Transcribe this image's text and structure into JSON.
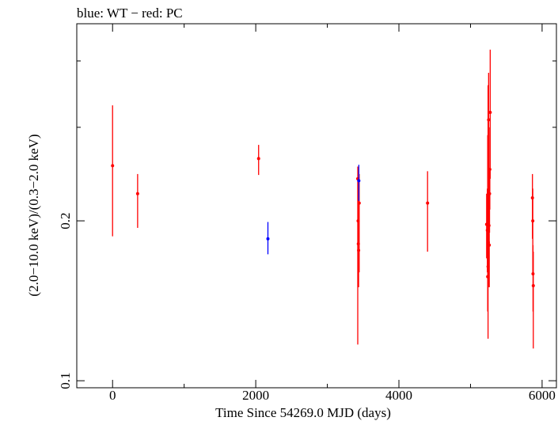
{
  "chart_data": {
    "type": "scatter",
    "title": "blue: WT − red: PC",
    "xlabel": "Time Since 54269.0 MJD (days)",
    "ylabel": "(2.0−10.0 keV)/(0.3−2.0 keV)",
    "xlim": [
      -500,
      6200
    ],
    "ylim": [
      0.097,
      0.47
    ],
    "yscale": "log",
    "x_ticks": [
      0,
      2000,
      4000,
      6000
    ],
    "x_tick_labels": [
      "0",
      "2000",
      "4000",
      "6000"
    ],
    "y_ticks": [
      0.1,
      0.2
    ],
    "y_tick_labels": [
      "0.1",
      "0.2"
    ],
    "grid": false,
    "series": [
      {
        "name": "WT",
        "color": "#0000ff",
        "points": [
          {
            "x": 2170,
            "y": 0.185,
            "ylo": 0.173,
            "yhi": 0.199
          },
          {
            "x": 3440,
            "y": 0.238,
            "ylo": 0.218,
            "yhi": 0.255
          }
        ]
      },
      {
        "name": "PC",
        "color": "#ff0000",
        "points": [
          {
            "x": 0,
            "y": 0.254,
            "ylo": 0.187,
            "yhi": 0.33
          },
          {
            "x": 350,
            "y": 0.225,
            "ylo": 0.194,
            "yhi": 0.245
          },
          {
            "x": 2040,
            "y": 0.262,
            "ylo": 0.244,
            "yhi": 0.278
          },
          {
            "x": 3425,
            "y": 0.24,
            "ylo": 0.117,
            "yhi": 0.253
          },
          {
            "x": 3430,
            "y": 0.2,
            "ylo": 0.15,
            "yhi": 0.24
          },
          {
            "x": 3433,
            "y": 0.181,
            "ylo": 0.15,
            "yhi": 0.235
          },
          {
            "x": 3437,
            "y": 0.176,
            "ylo": 0.15,
            "yhi": 0.23
          },
          {
            "x": 3445,
            "y": 0.216,
            "ylo": 0.16,
            "yhi": 0.245
          },
          {
            "x": 4400,
            "y": 0.216,
            "ylo": 0.175,
            "yhi": 0.248
          },
          {
            "x": 5225,
            "y": 0.197,
            "ylo": 0.17,
            "yhi": 0.225
          },
          {
            "x": 5235,
            "y": 0.192,
            "ylo": 0.16,
            "yhi": 0.23
          },
          {
            "x": 5240,
            "y": 0.157,
            "ylo": 0.135,
            "yhi": 0.29
          },
          {
            "x": 5245,
            "y": 0.164,
            "ylo": 0.12,
            "yhi": 0.36
          },
          {
            "x": 5250,
            "y": 0.182,
            "ylo": 0.15,
            "yhi": 0.34
          },
          {
            "x": 5253,
            "y": 0.31,
            "ylo": 0.23,
            "yhi": 0.38
          },
          {
            "x": 5258,
            "y": 0.196,
            "ylo": 0.16,
            "yhi": 0.25
          },
          {
            "x": 5262,
            "y": 0.18,
            "ylo": 0.15,
            "yhi": 0.23
          },
          {
            "x": 5266,
            "y": 0.225,
            "ylo": 0.19,
            "yhi": 0.25
          },
          {
            "x": 5270,
            "y": 0.25,
            "ylo": 0.21,
            "yhi": 0.3
          },
          {
            "x": 5275,
            "y": 0.32,
            "ylo": 0.24,
            "yhi": 0.42
          },
          {
            "x": 5865,
            "y": 0.221,
            "ylo": 0.185,
            "yhi": 0.245
          },
          {
            "x": 5870,
            "y": 0.2,
            "ylo": 0.16,
            "yhi": 0.23
          },
          {
            "x": 5873,
            "y": 0.159,
            "ylo": 0.135,
            "yhi": 0.18
          },
          {
            "x": 5877,
            "y": 0.151,
            "ylo": 0.115,
            "yhi": 0.175
          }
        ]
      }
    ]
  }
}
